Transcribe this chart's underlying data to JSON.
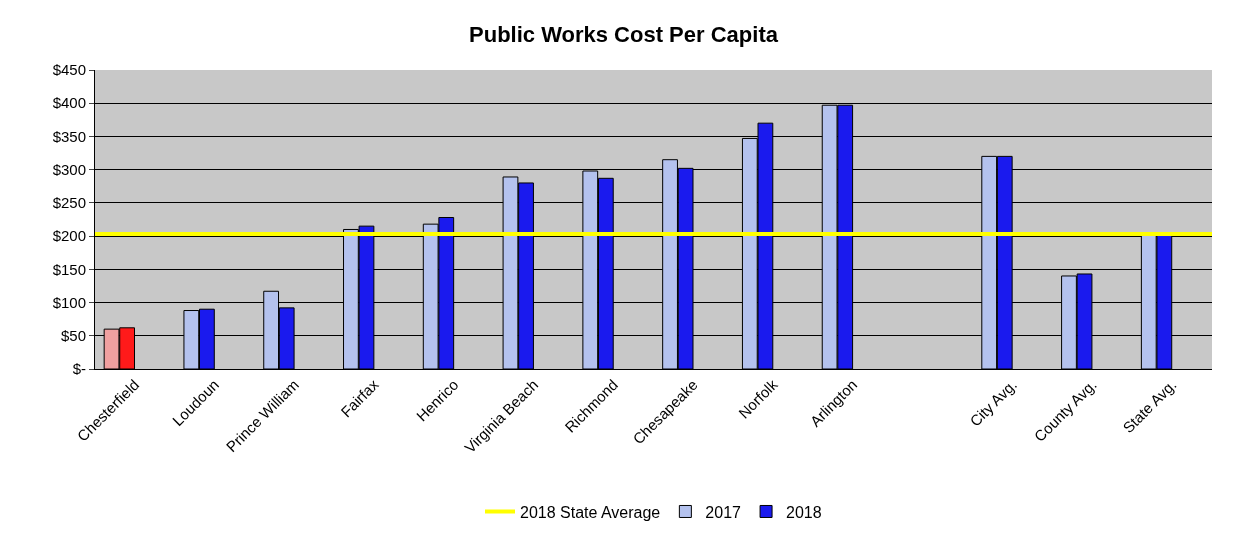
{
  "chart_data": {
    "type": "bar",
    "title": "Public Works Cost Per Capita",
    "categories": [
      "Chesterfield",
      "Loudoun",
      "Prince William",
      "Fairfax",
      "Henrico",
      "Virginia Beach",
      "Richmond",
      "Chesapeake",
      "Norfolk",
      "Arlington",
      null,
      "City Avg.",
      "County Avg.",
      "State Avg."
    ],
    "series": [
      {
        "name": "2017",
        "color": "#b4c2ee",
        "colors": [
          "#f0a0a0",
          "#b4c2ee",
          "#b4c2ee",
          "#b4c2ee",
          "#b4c2ee",
          "#b4c2ee",
          "#b4c2ee",
          "#b4c2ee",
          "#b4c2ee",
          "#b4c2ee",
          "#b4c2ee",
          "#b4c2ee",
          "#b4c2ee",
          "#b4c2ee"
        ],
        "values": [
          60,
          88,
          117,
          210,
          218,
          289,
          298,
          315,
          347,
          397,
          null,
          320,
          140,
          203
        ]
      },
      {
        "name": "2018",
        "color": "#1a1aee",
        "colors": [
          "#ff1a1a",
          "#1a1aee",
          "#1a1aee",
          "#1a1aee",
          "#1a1aee",
          "#1a1aee",
          "#1a1aee",
          "#1a1aee",
          "#1a1aee",
          "#1a1aee",
          "#1a1aee",
          "#1a1aee",
          "#1a1aee",
          "#1a1aee"
        ],
        "values": [
          62,
          90,
          92,
          215,
          228,
          280,
          287,
          302,
          370,
          397,
          null,
          320,
          143,
          203
        ]
      }
    ],
    "ylim": [
      0,
      450
    ],
    "yticks": [
      {
        "value": 0,
        "label": "$-"
      },
      {
        "value": 50,
        "label": "$50"
      },
      {
        "value": 100,
        "label": "$100"
      },
      {
        "value": 150,
        "label": "$150"
      },
      {
        "value": 200,
        "label": "$200"
      },
      {
        "value": 250,
        "label": "$250"
      },
      {
        "value": 300,
        "label": "$300"
      },
      {
        "value": 350,
        "label": "$350"
      },
      {
        "value": 400,
        "label": "$400"
      },
      {
        "value": 450,
        "label": "$450"
      }
    ],
    "ref_lines": [
      {
        "axis": "y",
        "value": 203,
        "label": "2018 State Average",
        "color": "#ffff00"
      }
    ],
    "grid": "y",
    "legend": "bottom"
  }
}
